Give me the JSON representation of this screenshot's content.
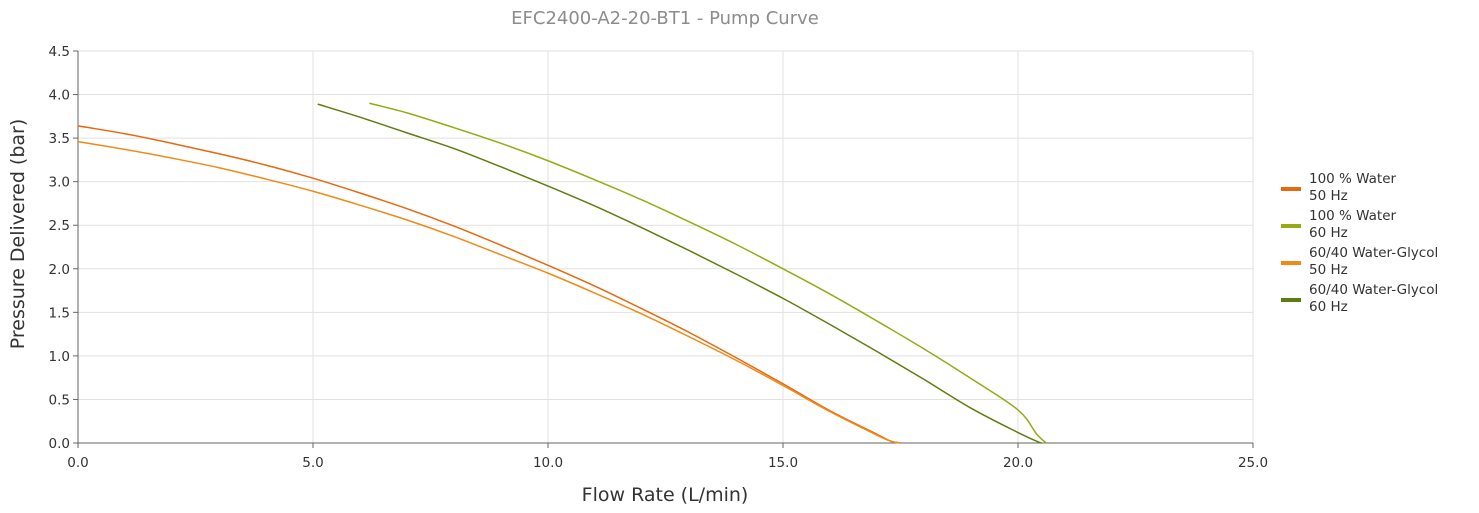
{
  "chart_data": {
    "type": "line",
    "title": "EFC2400-A2-20-BT1 - Pump Curve",
    "xlabel": "Flow Rate (L/min)",
    "ylabel": "Pressure Delivered (bar)",
    "xlim": [
      0,
      25
    ],
    "ylim": [
      0,
      4.5
    ],
    "xticks": [
      "0.0",
      "5.0",
      "10.0",
      "15.0",
      "20.0",
      "25.0"
    ],
    "yticks": [
      "0.0",
      "0.5",
      "1.0",
      "1.5",
      "2.0",
      "2.5",
      "3.0",
      "3.5",
      "4.0",
      "4.5"
    ],
    "grid": true,
    "legend_position": "right",
    "series": [
      {
        "name": "100 % Water 50 Hz",
        "legend_lines": [
          "100 % Water",
          "50 Hz"
        ],
        "color": "#e8680f",
        "x": [
          0,
          1,
          2,
          3,
          4,
          5,
          6,
          7,
          8,
          9,
          10,
          11,
          12,
          13,
          14,
          15,
          16,
          17,
          17.3,
          17.5
        ],
        "y": [
          3.64,
          3.55,
          3.44,
          3.32,
          3.19,
          3.04,
          2.87,
          2.69,
          2.49,
          2.27,
          2.04,
          1.8,
          1.54,
          1.27,
          0.98,
          0.68,
          0.37,
          0.1,
          0.02,
          0.0
        ]
      },
      {
        "name": "100 % Water 60 Hz",
        "legend_lines": [
          "100 % Water",
          "60 Hz"
        ],
        "color": "#97aa13",
        "x": [
          6.2,
          7,
          8,
          9,
          10,
          11,
          12,
          13,
          14,
          15,
          16,
          17,
          18,
          19,
          20,
          20.4,
          20.6
        ],
        "y": [
          3.9,
          3.79,
          3.62,
          3.44,
          3.24,
          3.02,
          2.79,
          2.54,
          2.28,
          2.0,
          1.71,
          1.4,
          1.08,
          0.74,
          0.38,
          0.1,
          0.0
        ]
      },
      {
        "name": "60/40 Water-Glycol 50 Hz",
        "legend_lines": [
          "60/40 Water-Glycol",
          "50 Hz"
        ],
        "color": "#f08a16",
        "x": [
          0,
          1,
          2,
          3,
          4,
          5,
          6,
          7,
          8,
          9,
          10,
          11,
          12,
          13,
          14,
          15,
          16,
          17,
          17.3,
          17.5
        ],
        "y": [
          3.46,
          3.37,
          3.27,
          3.16,
          3.03,
          2.89,
          2.73,
          2.56,
          2.37,
          2.16,
          1.95,
          1.72,
          1.48,
          1.22,
          0.95,
          0.66,
          0.36,
          0.09,
          0.02,
          0.0
        ]
      },
      {
        "name": "60/40 Water-Glycol 60 Hz",
        "legend_lines": [
          "60/40 Water-Glycol",
          "60 Hz"
        ],
        "color": "#5f7d0f",
        "x": [
          5.1,
          6,
          7,
          8,
          9,
          10,
          11,
          12,
          13,
          14,
          15,
          16,
          17,
          18,
          19,
          20,
          20.4,
          20.5
        ],
        "y": [
          3.89,
          3.74,
          3.56,
          3.38,
          3.17,
          2.95,
          2.72,
          2.47,
          2.21,
          1.94,
          1.66,
          1.36,
          1.05,
          0.73,
          0.4,
          0.12,
          0.02,
          0.0
        ]
      }
    ]
  }
}
